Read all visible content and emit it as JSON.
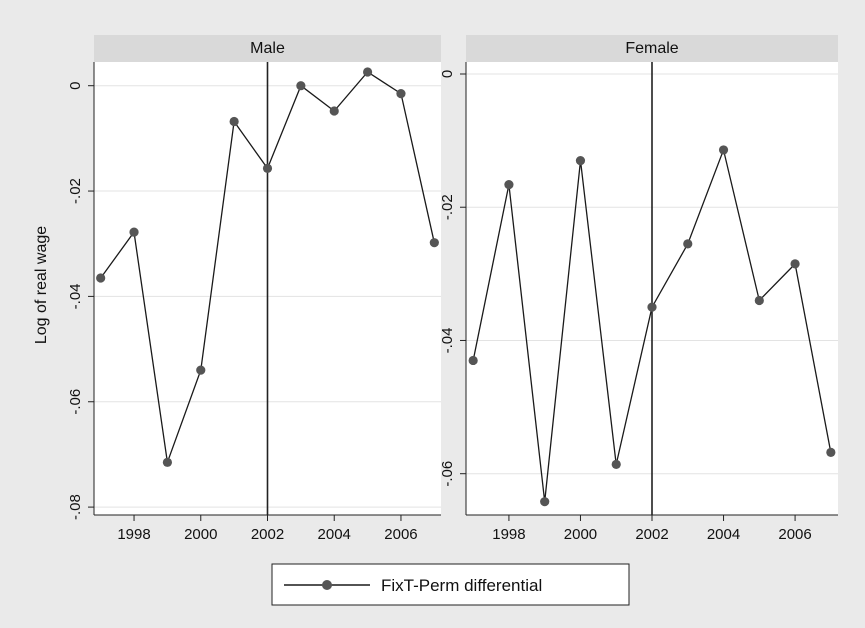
{
  "chart_data": {
    "type": "line",
    "ylabel": "Log of real wage",
    "legend": {
      "position": "bottom-center",
      "label": "FixT-Perm differential"
    },
    "colors": {
      "line": "#1a1a1a",
      "marker": "#555555",
      "strip": "#d9d9d9",
      "plot_bg": "#ffffff",
      "grid": "#e3e3e3"
    },
    "reference_line_x": 2002,
    "xlim": [
      1996.8,
      2007.2
    ],
    "xticks": [
      "1998",
      "2000",
      "2002",
      "2004",
      "2006"
    ],
    "panels": [
      {
        "title": "Male",
        "ylim": [
          -0.0815,
          0.0045
        ],
        "yticks": [
          "0",
          "-.02",
          "-.04",
          "-.06",
          "-.08"
        ],
        "ytick_values": [
          0,
          -0.02,
          -0.04,
          -0.06,
          -0.08
        ],
        "series": [
          {
            "x": [
              1997,
              1998,
              1999,
              2000,
              2001,
              2002,
              2003,
              2004,
              2005,
              2006,
              2007
            ],
            "values": [
              -0.0365,
              -0.0278,
              -0.0715,
              -0.054,
              -0.0068,
              -0.0157,
              0.0,
              -0.0048,
              0.0026,
              -0.0015,
              -0.0298
            ]
          }
        ]
      },
      {
        "title": "Female",
        "ylim": [
          -0.0662,
          0.0018
        ],
        "yticks": [
          "0",
          "-.02",
          "-.04",
          "-.06"
        ],
        "ytick_values": [
          0,
          -0.02,
          -0.04,
          -0.06
        ],
        "series": [
          {
            "x": [
              1997,
              1998,
              1999,
              2000,
              2001,
              2002,
              2003,
              2004,
              2005,
              2006,
              2007
            ],
            "values": [
              -0.043,
              -0.0166,
              -0.0642,
              -0.013,
              -0.0586,
              -0.035,
              -0.0255,
              -0.0114,
              -0.034,
              -0.0285,
              -0.0568
            ]
          }
        ]
      }
    ]
  }
}
